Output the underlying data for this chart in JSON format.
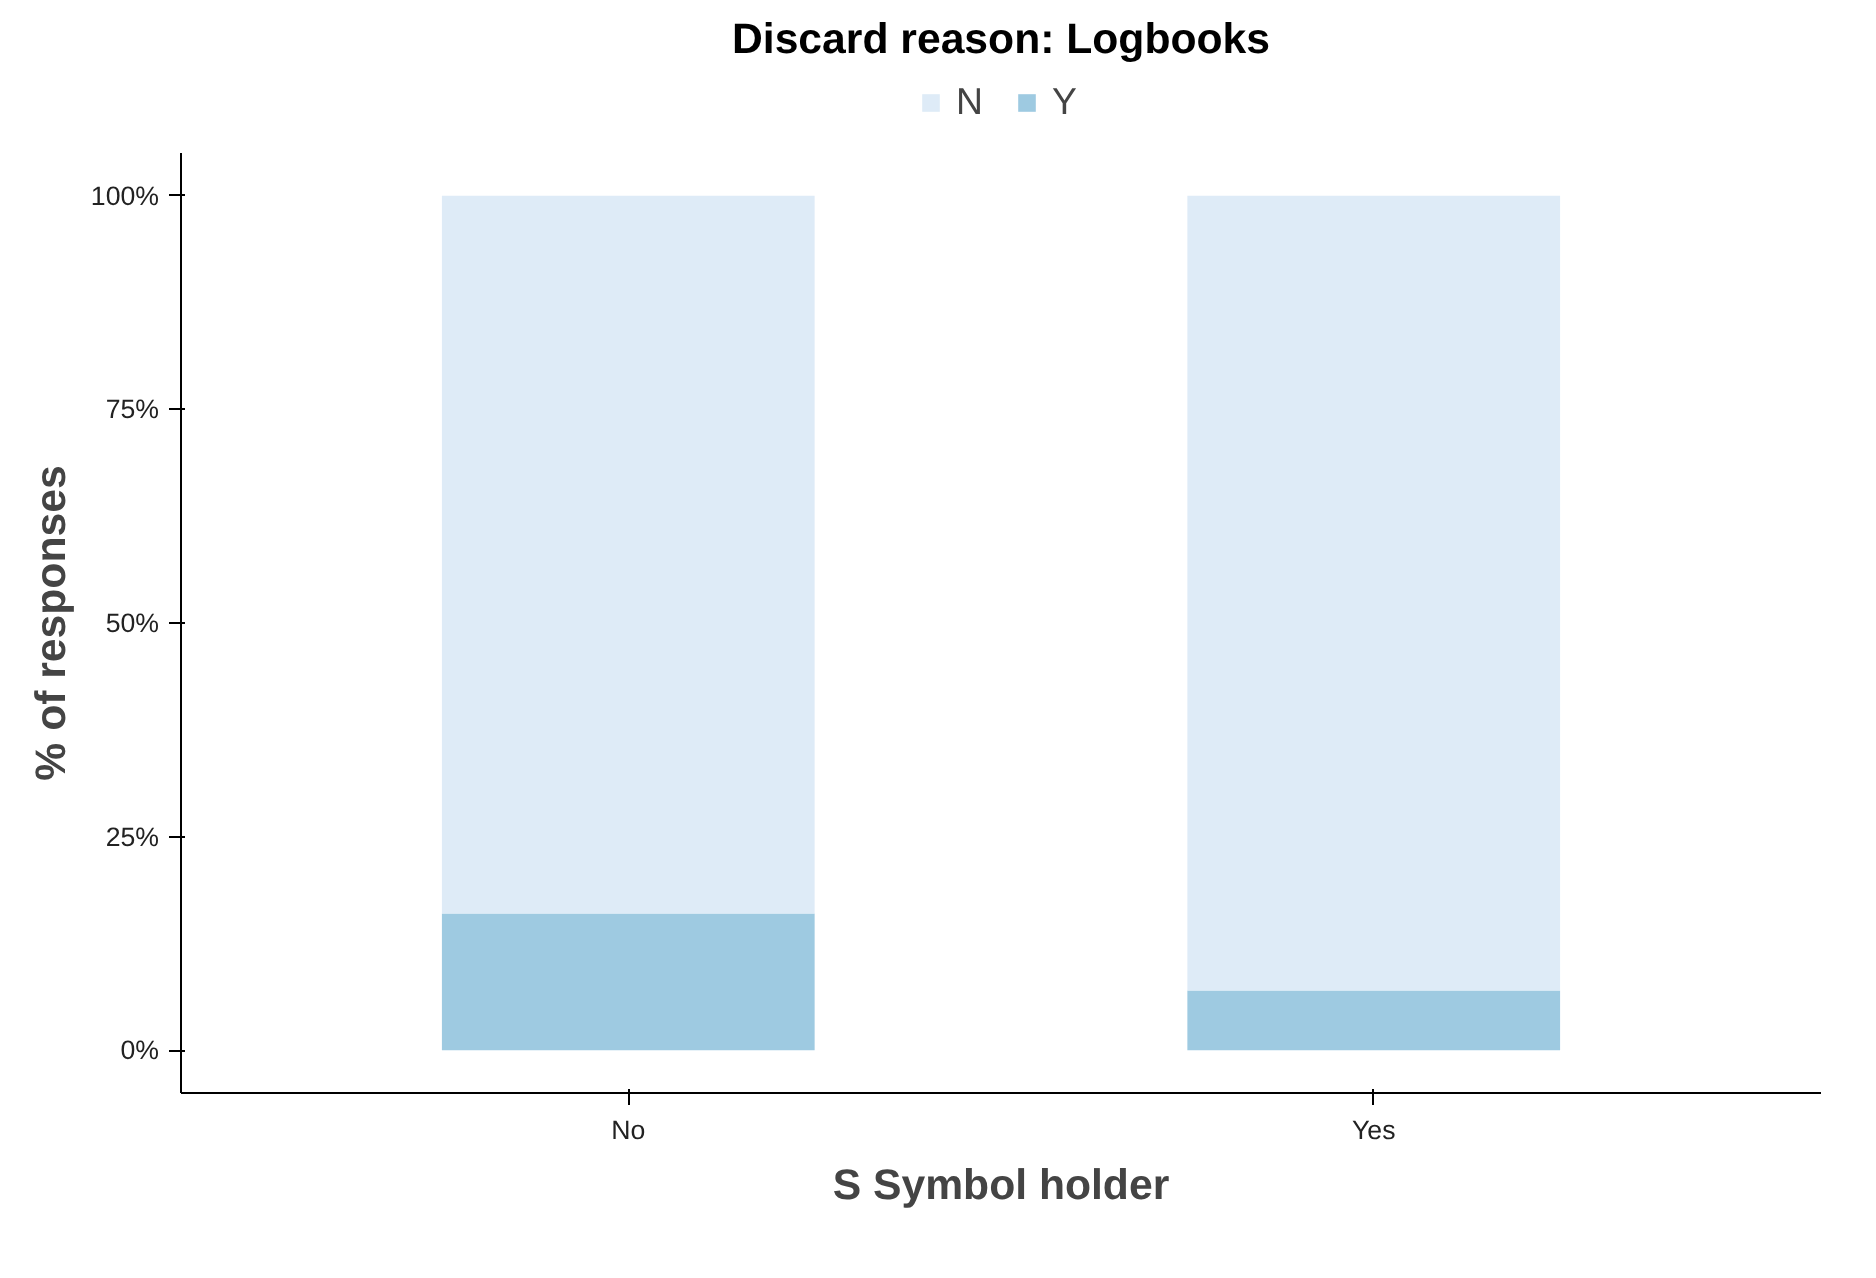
{
  "chart_data": {
    "type": "bar",
    "title": "Discard reason: Logbooks",
    "xlabel": "S Symbol holder",
    "ylabel": "% of responses",
    "categories": [
      "No",
      "Yes"
    ],
    "stacked": true,
    "series": [
      {
        "name": "Y",
        "color": "#9ecae1",
        "values": [
          16,
          7
        ]
      },
      {
        "name": "N",
        "color": "#deebf7",
        "values": [
          84,
          93
        ]
      }
    ],
    "ylim": [
      -5,
      105
    ],
    "yticks": [
      {
        "value": 0,
        "label": "0%"
      },
      {
        "value": 25,
        "label": "25%"
      },
      {
        "value": 50,
        "label": "50%"
      },
      {
        "value": 75,
        "label": "75%"
      },
      {
        "value": 100,
        "label": "100%"
      }
    ],
    "grid": false,
    "legend": "top"
  }
}
